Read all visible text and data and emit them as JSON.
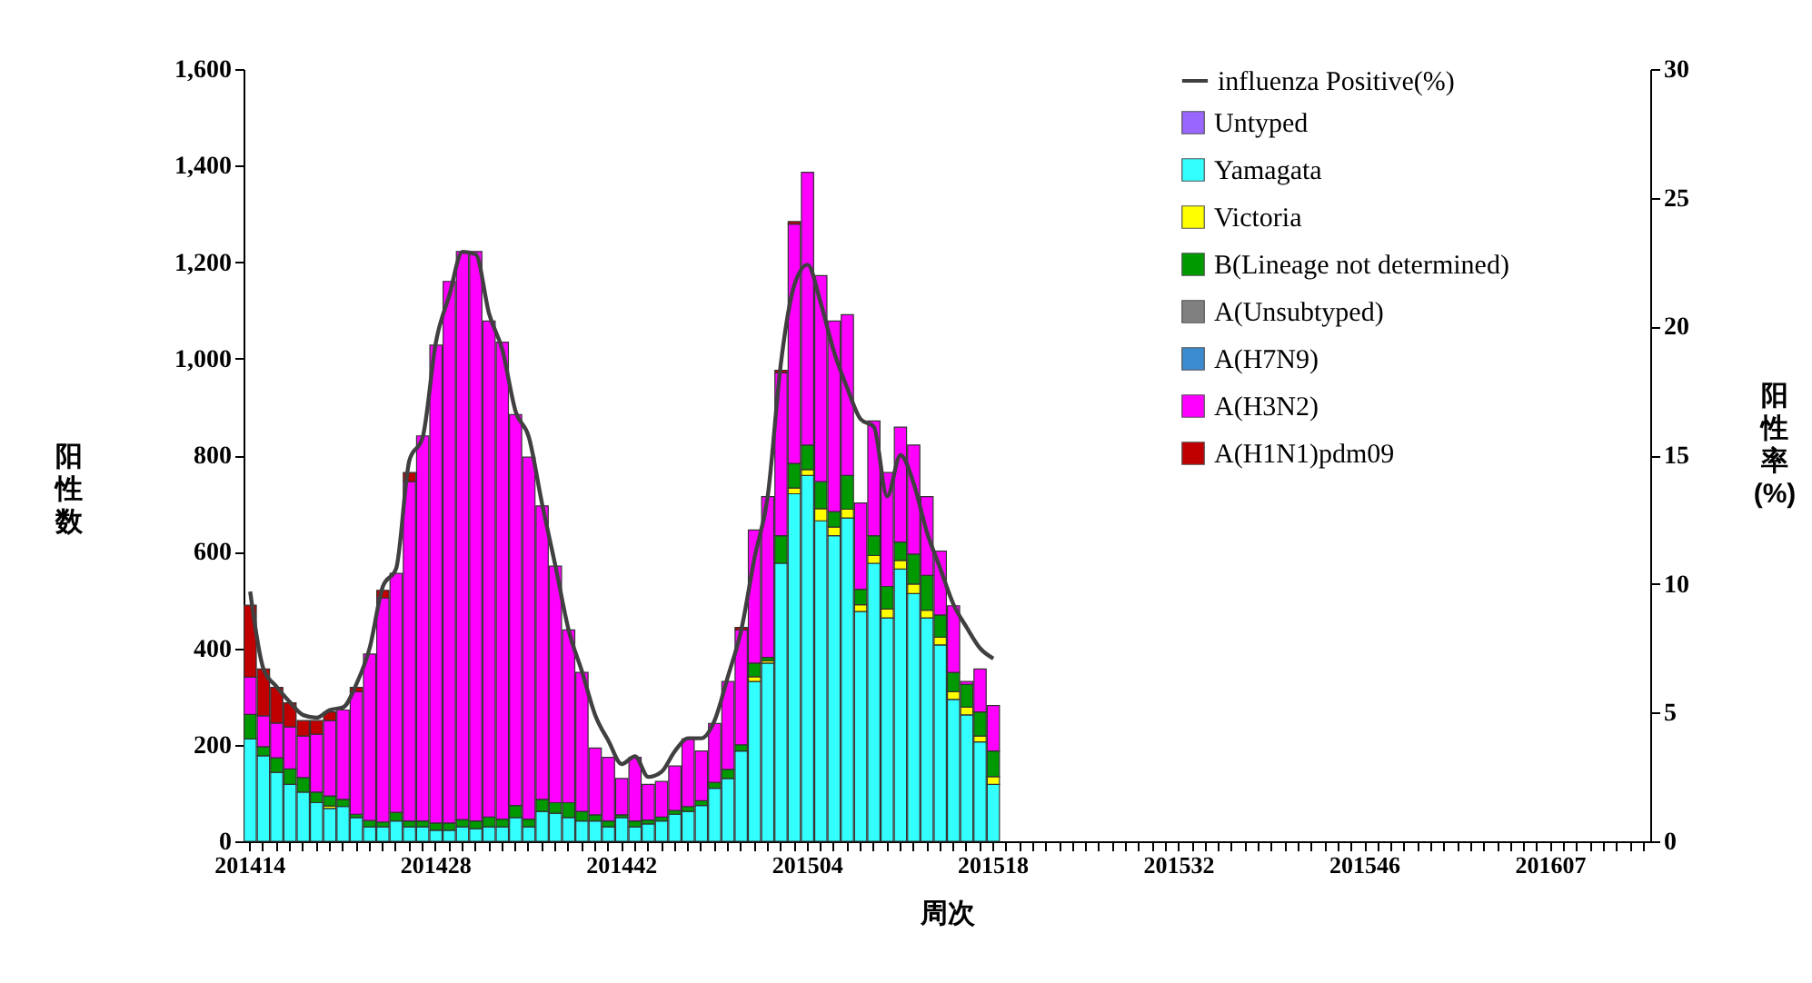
{
  "chart_data": {
    "type": "bar",
    "stacked": true,
    "xlabel": "周次",
    "ylabel": "阳性数",
    "y2label": "阳性率(%)",
    "legend": "top right",
    "categories": [
      "201414",
      null,
      null,
      null,
      null,
      null,
      null,
      null,
      null,
      null,
      null,
      null,
      null,
      null,
      "201428",
      null,
      null,
      null,
      null,
      null,
      null,
      null,
      null,
      null,
      null,
      null,
      null,
      null,
      "201442",
      null,
      null,
      null,
      null,
      null,
      null,
      null,
      null,
      null,
      null,
      null,
      null,
      null,
      "201504",
      null,
      null,
      null,
      null,
      null,
      null,
      null,
      null,
      null,
      null,
      null,
      null,
      null,
      "201518",
      null,
      null,
      null,
      null,
      null,
      null,
      null,
      null,
      null,
      null,
      null,
      null,
      null,
      "201532",
      null,
      null,
      null,
      null,
      null,
      null,
      null,
      null,
      null,
      null,
      null,
      null,
      null,
      "201546",
      null,
      null,
      null,
      null,
      null,
      null,
      null,
      null,
      null,
      null,
      null,
      null,
      null,
      "201607",
      null,
      null,
      null,
      null,
      null,
      null,
      null
    ],
    "ylim": [
      0,
      1600
    ],
    "yticks": [
      0,
      200,
      400,
      600,
      800,
      {
        "value": 1000,
        "label": "1,000"
      },
      {
        "value": 1200,
        "label": "1,200"
      },
      {
        "value": 1400,
        "label": "1,400"
      },
      {
        "value": 1600,
        "label": "1,600"
      }
    ],
    "y2lim": [
      0,
      30
    ],
    "y2ticks": [
      0,
      5,
      10,
      15,
      20,
      25,
      30
    ],
    "series": [
      {
        "name": "influenza Positive(%)",
        "type": "line",
        "axis": "y2",
        "color": "#404040",
        "values": [
          9.7,
          6.7,
          6.0,
          5.4,
          4.9,
          4.8,
          5.1,
          5.2,
          6.1,
          7.5,
          9.9,
          10.6,
          14.8,
          15.7,
          19.4,
          21.2,
          22.9,
          22.8,
          20.5,
          19.1,
          16.7,
          15.7,
          13.1,
          10.7,
          8.2,
          6.6,
          4.9,
          3.9,
          3.0,
          3.3,
          2.5,
          2.7,
          3.5,
          4.0,
          4.0,
          4.7,
          6.4,
          8.2,
          11.0,
          13.4,
          18.6,
          21.6,
          22.4,
          20.9,
          19.0,
          17.6,
          16.4,
          16.1,
          13.4,
          15.0,
          13.9,
          12.0,
          10.6,
          9.2,
          8.3,
          7.5,
          7.1,
          null,
          null,
          null,
          null,
          null,
          null,
          null,
          null,
          null,
          null,
          null,
          null,
          null,
          null,
          null,
          null,
          null,
          null,
          null,
          null,
          null,
          null,
          null,
          null,
          null,
          null,
          null,
          null,
          null,
          null,
          null,
          null,
          null,
          null,
          null,
          null,
          null,
          null,
          null,
          null,
          null,
          null,
          null,
          null,
          null,
          null,
          null,
          null,
          null
        ]
      },
      {
        "name": "Untyped",
        "color": "#9966ff",
        "values": [
          0,
          0,
          0,
          0,
          0,
          0,
          0,
          0,
          0,
          0,
          0,
          0,
          0,
          0,
          0,
          0,
          0,
          0,
          0,
          0,
          0,
          0,
          0,
          0,
          0,
          0,
          0,
          0,
          0,
          0,
          0,
          0,
          0,
          0,
          0,
          0,
          0,
          0,
          0,
          0,
          0,
          0,
          0,
          0,
          0,
          0,
          0,
          0,
          0,
          0,
          0,
          0,
          0,
          0,
          0,
          0,
          0,
          null,
          null,
          null,
          null,
          null,
          null,
          null,
          null,
          null,
          null,
          null,
          null,
          null,
          null,
          null,
          null,
          null,
          null,
          null,
          null,
          null,
          null,
          null,
          null,
          null,
          null,
          null,
          null,
          null,
          null,
          null,
          null,
          null,
          null,
          null,
          null,
          null,
          null,
          null,
          null,
          null,
          null,
          null,
          null,
          null,
          null,
          null,
          null,
          null
        ]
      },
      {
        "name": "Yamagata",
        "color": "#33ffff",
        "values": [
          212,
          177,
          143,
          118,
          102,
          80,
          68,
          72,
          49,
          30,
          30,
          42,
          30,
          30,
          23,
          23,
          30,
          26,
          30,
          30,
          49,
          30,
          62,
          58,
          49,
          42,
          42,
          30,
          49,
          30,
          36,
          42,
          56,
          62,
          74,
          110,
          130,
          187,
          331,
          369,
          576,
          720,
          758,
          664,
          633,
          670,
          476,
          576,
          463,
          564,
          513,
          463,
          407,
          294,
          262,
          206,
          118,
          null,
          null,
          null,
          null,
          null,
          null,
          null,
          null,
          null,
          null,
          null,
          null,
          null,
          null,
          null,
          null,
          null,
          null,
          null,
          null,
          null,
          null,
          null,
          null,
          null,
          null,
          null,
          null,
          null,
          null,
          null,
          null,
          null,
          null,
          null,
          null,
          null,
          null,
          null,
          null,
          null,
          null,
          null,
          null,
          null,
          null,
          null,
          null,
          null
        ]
      },
      {
        "name": "Victoria",
        "color": "#ffff00",
        "values": [
          0,
          0,
          0,
          0,
          0,
          0,
          5,
          0,
          0,
          0,
          0,
          0,
          0,
          0,
          0,
          0,
          0,
          0,
          0,
          0,
          0,
          0,
          0,
          0,
          0,
          0,
          0,
          0,
          0,
          0,
          0,
          0,
          0,
          0,
          0,
          0,
          0,
          0,
          10,
          5,
          0,
          12,
          12,
          25,
          18,
          18,
          14,
          16,
          18,
          18,
          20,
          16,
          16,
          16,
          16,
          12,
          16,
          null,
          null,
          null,
          null,
          null,
          null,
          null,
          null,
          null,
          null,
          null,
          null,
          null,
          null,
          null,
          null,
          null,
          null,
          null,
          null,
          null,
          null,
          null,
          null,
          null,
          null,
          null,
          null,
          null,
          null,
          null,
          null,
          null,
          null,
          null,
          null,
          null,
          null,
          null,
          null,
          null,
          null,
          null,
          null,
          null,
          null,
          null,
          null,
          null
        ]
      },
      {
        "name": "B(Lineage not determined)",
        "color": "#009900",
        "values": [
          51,
          19,
          30,
          32,
          30,
          22,
          21,
          15,
          7,
          13,
          10,
          18,
          12,
          12,
          15,
          15,
          15,
          16,
          20,
          16,
          25,
          16,
          25,
          22,
          31,
          20,
          13,
          12,
          6,
          12,
          8,
          8,
          8,
          10,
          10,
          12,
          19,
          13,
          28,
          7,
          57,
          51,
          51,
          56,
          32,
          70,
          32,
          41,
          47,
          38,
          62,
          72,
          46,
          40,
          47,
          50,
          53,
          null,
          null,
          null,
          null,
          null,
          null,
          null,
          null,
          null,
          null,
          null,
          null,
          null,
          null,
          null,
          null,
          null,
          null,
          null,
          null,
          null,
          null,
          null,
          null,
          null,
          null,
          null,
          null,
          null,
          null,
          null,
          null,
          null,
          null,
          null,
          null,
          null,
          null,
          null,
          null,
          null,
          null,
          null,
          null,
          null,
          null,
          null,
          null,
          null
        ]
      },
      {
        "name": "A(Unsubtyped)",
        "color": "#808080",
        "values": [
          0,
          0,
          0,
          0,
          0,
          0,
          0,
          0,
          0,
          0,
          0,
          0,
          0,
          0,
          0,
          0,
          0,
          0,
          0,
          0,
          0,
          0,
          0,
          0,
          0,
          0,
          0,
          0,
          0,
          0,
          0,
          0,
          0,
          0,
          0,
          0,
          0,
          0,
          0,
          0,
          0,
          0,
          0,
          0,
          0,
          0,
          0,
          0,
          0,
          0,
          0,
          0,
          0,
          0,
          0,
          0,
          0,
          null,
          null,
          null,
          null,
          null,
          null,
          null,
          null,
          null,
          null,
          null,
          null,
          null,
          null,
          null,
          null,
          null,
          null,
          null,
          null,
          null,
          null,
          null,
          null,
          null,
          null,
          null,
          null,
          null,
          null,
          null,
          null,
          null,
          null,
          null,
          null,
          null,
          null,
          null,
          null,
          null,
          null,
          null,
          null,
          null,
          null,
          null,
          null,
          null
        ]
      },
      {
        "name": "A(H7N9)",
        "color": "#3b8bd0",
        "values": [
          0,
          0,
          0,
          0,
          0,
          0,
          0,
          0,
          0,
          0,
          0,
          0,
          0,
          0,
          0,
          0,
          0,
          0,
          0,
          0,
          0,
          0,
          0,
          0,
          0,
          0,
          0,
          0,
          0,
          0,
          0,
          0,
          0,
          0,
          0,
          0,
          0,
          0,
          0,
          0,
          0,
          0,
          0,
          0,
          0,
          0,
          0,
          0,
          0,
          0,
          0,
          0,
          0,
          0,
          0,
          0,
          0,
          null,
          null,
          null,
          null,
          null,
          null,
          null,
          null,
          null,
          null,
          null,
          null,
          null,
          null,
          null,
          null,
          null,
          null,
          null,
          null,
          null,
          null,
          null,
          null,
          null,
          null,
          null,
          null,
          null,
          null,
          null,
          null,
          null,
          null,
          null,
          null,
          null,
          null,
          null,
          null,
          null,
          null,
          null,
          null,
          null,
          null,
          null,
          null,
          null
        ]
      },
      {
        "name": "A(H3N2)",
        "color": "#ff00ff",
        "values": [
          77,
          64,
          72,
          87,
          86,
          120,
          156,
          185,
          254,
          345,
          464,
          495,
          703,
          798,
          990,
          1122,
          1177,
          1180,
          1028,
          988,
          810,
          750,
          608,
          490,
          358,
          288,
          138,
          132,
          75,
          132,
          74,
          74,
          92,
          140,
          103,
          122,
          182,
          238,
          276,
          333,
          338,
          496,
          565,
          427,
          395,
          333,
          179,
          238,
          236,
          238,
          226,
          163,
          132,
          138,
          6,
          89,
          94,
          null,
          null,
          null,
          null,
          null,
          null,
          null,
          null,
          null,
          null,
          null,
          null,
          null,
          null,
          null,
          null,
          null,
          null,
          null,
          null,
          null,
          null,
          null,
          null,
          null,
          null,
          null,
          null,
          null,
          null,
          null,
          null,
          null,
          null,
          null,
          null,
          null,
          null,
          null,
          null,
          null,
          null,
          null,
          null,
          null,
          null,
          null,
          null,
          null
        ]
      },
      {
        "name": "A(H1N1)pdm09",
        "color": "#c00000",
        "values": [
          149,
          97,
          74,
          50,
          32,
          28,
          18,
          0,
          9,
          0,
          16,
          0,
          19,
          0,
          0,
          0,
          0,
          0,
          0,
          0,
          0,
          0,
          0,
          0,
          0,
          0,
          0,
          0,
          0,
          0,
          0,
          0,
          0,
          0,
          0,
          0,
          0,
          5,
          0,
          0,
          5,
          5,
          0,
          0,
          0,
          0,
          0,
          0,
          0,
          0,
          0,
          0,
          0,
          0,
          0,
          0,
          0,
          null,
          null,
          null,
          null,
          null,
          null,
          null,
          null,
          null,
          null,
          null,
          null,
          null,
          null,
          null,
          null,
          null,
          null,
          null,
          null,
          null,
          null,
          null,
          null,
          null,
          null,
          null,
          null,
          null,
          null,
          null,
          null,
          null,
          null,
          null,
          null,
          null,
          null,
          null,
          null,
          null,
          null,
          null,
          null,
          null,
          null,
          null,
          null,
          null
        ]
      }
    ]
  }
}
